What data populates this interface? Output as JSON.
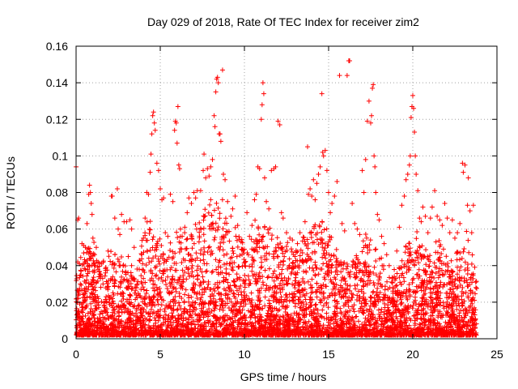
{
  "chart_data": {
    "type": "scatter",
    "title": "Day 029 of 2018, Rate Of TEC Index for receiver zim2",
    "xlabel": "GPS time / hours",
    "ylabel": "ROTI / TECUs",
    "xlim": [
      0,
      25
    ],
    "ylim": [
      0,
      0.16
    ],
    "x_ticks": [
      0,
      5,
      10,
      15,
      20,
      25
    ],
    "x_tick_labels": [
      "0",
      "5",
      "10",
      "15",
      "20",
      "25"
    ],
    "y_ticks": [
      0,
      0.02,
      0.04,
      0.06,
      0.08,
      0.1,
      0.12,
      0.14,
      0.16
    ],
    "y_tick_labels": [
      "0",
      "0.02",
      "0.04",
      "0.06",
      "0.08",
      "0.1",
      "0.12",
      "0.14",
      "0.16"
    ],
    "grid": true,
    "marker": "+",
    "series_color": "#ff0000",
    "points": [
      [
        0.0,
        0.094
      ],
      [
        0.05,
        0.013
      ],
      [
        0.1,
        0.065
      ],
      [
        0.15,
        0.066
      ],
      [
        0.1,
        0.042
      ],
      [
        0.2,
        0.041
      ],
      [
        0.25,
        0.03
      ],
      [
        0.3,
        0.037
      ],
      [
        0.35,
        0.052
      ],
      [
        0.45,
        0.051
      ],
      [
        0.55,
        0.05
      ],
      [
        0.65,
        0.063
      ],
      [
        0.75,
        0.079
      ],
      [
        0.8,
        0.084
      ],
      [
        0.85,
        0.08
      ],
      [
        0.9,
        0.074
      ],
      [
        0.95,
        0.068
      ],
      [
        1.0,
        0.055
      ],
      [
        1.1,
        0.046
      ],
      [
        1.2,
        0.05
      ],
      [
        1.3,
        0.038
      ],
      [
        1.45,
        0.033
      ],
      [
        1.6,
        0.03
      ],
      [
        1.75,
        0.036
      ],
      [
        1.9,
        0.048
      ],
      [
        2.1,
        0.078
      ],
      [
        2.15,
        0.078
      ],
      [
        2.3,
        0.066
      ],
      [
        2.45,
        0.082
      ],
      [
        2.5,
        0.06
      ],
      [
        2.6,
        0.057
      ],
      [
        2.7,
        0.068
      ],
      [
        2.85,
        0.064
      ],
      [
        3.0,
        0.064
      ],
      [
        3.1,
        0.045
      ],
      [
        3.2,
        0.065
      ],
      [
        3.3,
        0.06
      ],
      [
        3.45,
        0.05
      ],
      [
        3.6,
        0.028
      ],
      [
        3.75,
        0.038
      ],
      [
        3.9,
        0.046
      ],
      [
        4.0,
        0.055
      ],
      [
        4.1,
        0.066
      ],
      [
        4.2,
        0.08
      ],
      [
        4.3,
        0.079
      ],
      [
        4.4,
        0.091
      ],
      [
        4.45,
        0.101
      ],
      [
        4.5,
        0.112
      ],
      [
        4.55,
        0.122
      ],
      [
        4.6,
        0.124
      ],
      [
        4.65,
        0.118
      ],
      [
        4.7,
        0.114
      ],
      [
        4.8,
        0.096
      ],
      [
        4.9,
        0.092
      ],
      [
        5.0,
        0.082
      ],
      [
        5.1,
        0.076
      ],
      [
        5.2,
        0.077
      ],
      [
        5.3,
        0.058
      ],
      [
        5.45,
        0.056
      ],
      [
        5.6,
        0.079
      ],
      [
        5.75,
        0.075
      ],
      [
        5.85,
        0.114
      ],
      [
        5.9,
        0.119
      ],
      [
        5.95,
        0.118
      ],
      [
        6.0,
        0.107
      ],
      [
        6.05,
        0.127
      ],
      [
        6.1,
        0.095
      ],
      [
        6.15,
        0.093
      ],
      [
        6.2,
        0.06
      ],
      [
        6.3,
        0.056
      ],
      [
        6.45,
        0.058
      ],
      [
        6.6,
        0.069
      ],
      [
        6.7,
        0.077
      ],
      [
        6.85,
        0.074
      ],
      [
        7.0,
        0.08
      ],
      [
        7.1,
        0.077
      ],
      [
        7.2,
        0.081
      ],
      [
        7.4,
        0.081
      ],
      [
        7.55,
        0.092
      ],
      [
        7.6,
        0.101
      ],
      [
        7.7,
        0.088
      ],
      [
        7.8,
        0.093
      ],
      [
        7.9,
        0.089
      ],
      [
        8.0,
        0.094
      ],
      [
        8.1,
        0.098
      ],
      [
        8.2,
        0.122
      ],
      [
        8.25,
        0.116
      ],
      [
        8.3,
        0.135
      ],
      [
        8.35,
        0.142
      ],
      [
        8.4,
        0.143
      ],
      [
        8.45,
        0.14
      ],
      [
        8.5,
        0.112
      ],
      [
        8.55,
        0.112
      ],
      [
        8.6,
        0.108
      ],
      [
        8.7,
        0.147
      ],
      [
        8.75,
        0.09
      ],
      [
        8.85,
        0.087
      ],
      [
        9.0,
        0.075
      ],
      [
        9.2,
        0.067
      ],
      [
        9.3,
        0.071
      ],
      [
        9.45,
        0.078
      ],
      [
        9.6,
        0.062
      ],
      [
        9.8,
        0.053
      ],
      [
        9.9,
        0.049
      ],
      [
        10.0,
        0.049
      ],
      [
        10.15,
        0.069
      ],
      [
        10.3,
        0.056
      ],
      [
        10.45,
        0.062
      ],
      [
        10.6,
        0.076
      ],
      [
        10.7,
        0.079
      ],
      [
        10.8,
        0.094
      ],
      [
        10.9,
        0.093
      ],
      [
        11.0,
        0.12
      ],
      [
        11.05,
        0.128
      ],
      [
        11.1,
        0.14
      ],
      [
        11.15,
        0.134
      ],
      [
        11.2,
        0.088
      ],
      [
        11.3,
        0.075
      ],
      [
        11.45,
        0.071
      ],
      [
        11.6,
        0.092
      ],
      [
        11.75,
        0.093
      ],
      [
        11.85,
        0.094
      ],
      [
        12.0,
        0.119
      ],
      [
        12.1,
        0.117
      ],
      [
        12.2,
        0.069
      ],
      [
        12.3,
        0.066
      ],
      [
        12.5,
        0.058
      ],
      [
        12.7,
        0.055
      ],
      [
        12.85,
        0.054
      ],
      [
        13.0,
        0.045
      ],
      [
        13.15,
        0.052
      ],
      [
        13.3,
        0.058
      ],
      [
        13.45,
        0.047
      ],
      [
        13.6,
        0.064
      ],
      [
        13.75,
        0.105
      ],
      [
        13.8,
        0.079
      ],
      [
        13.9,
        0.082
      ],
      [
        14.0,
        0.078
      ],
      [
        14.1,
        0.087
      ],
      [
        14.2,
        0.076
      ],
      [
        14.3,
        0.085
      ],
      [
        14.4,
        0.09
      ],
      [
        14.5,
        0.094
      ],
      [
        14.6,
        0.134
      ],
      [
        14.65,
        0.102
      ],
      [
        14.7,
        0.1
      ],
      [
        14.8,
        0.103
      ],
      [
        14.9,
        0.092
      ],
      [
        15.0,
        0.08
      ],
      [
        15.1,
        0.069
      ],
      [
        15.2,
        0.074
      ],
      [
        15.35,
        0.078
      ],
      [
        15.5,
        0.086
      ],
      [
        15.65,
        0.144
      ],
      [
        15.8,
        0.063
      ],
      [
        15.95,
        0.059
      ],
      [
        16.1,
        0.144
      ],
      [
        16.2,
        0.152
      ],
      [
        16.25,
        0.152
      ],
      [
        16.4,
        0.074
      ],
      [
        16.55,
        0.063
      ],
      [
        16.7,
        0.06
      ],
      [
        16.85,
        0.057
      ],
      [
        17.0,
        0.092
      ],
      [
        17.1,
        0.08
      ],
      [
        17.2,
        0.098
      ],
      [
        17.3,
        0.119
      ],
      [
        17.4,
        0.13
      ],
      [
        17.5,
        0.118
      ],
      [
        17.55,
        0.122
      ],
      [
        17.6,
        0.137
      ],
      [
        17.65,
        0.139
      ],
      [
        17.7,
        0.1
      ],
      [
        17.75,
        0.094
      ],
      [
        17.8,
        0.08
      ],
      [
        17.9,
        0.068
      ],
      [
        18.0,
        0.065
      ],
      [
        18.15,
        0.056
      ],
      [
        18.3,
        0.052
      ],
      [
        18.45,
        0.046
      ],
      [
        18.6,
        0.04
      ],
      [
        18.75,
        0.031
      ],
      [
        18.9,
        0.034
      ],
      [
        19.05,
        0.048
      ],
      [
        19.2,
        0.061
      ],
      [
        19.35,
        0.073
      ],
      [
        19.5,
        0.078
      ],
      [
        19.6,
        0.087
      ],
      [
        19.7,
        0.09
      ],
      [
        19.8,
        0.095
      ],
      [
        19.85,
        0.1
      ],
      [
        19.9,
        0.121
      ],
      [
        19.95,
        0.127
      ],
      [
        20.0,
        0.133
      ],
      [
        20.05,
        0.126
      ],
      [
        20.1,
        0.113
      ],
      [
        20.15,
        0.1
      ],
      [
        20.2,
        0.09
      ],
      [
        20.3,
        0.081
      ],
      [
        20.4,
        0.066
      ],
      [
        20.5,
        0.064
      ],
      [
        20.6,
        0.072
      ],
      [
        20.75,
        0.067
      ],
      [
        20.9,
        0.058
      ],
      [
        21.05,
        0.066
      ],
      [
        21.15,
        0.072
      ],
      [
        21.3,
        0.081
      ],
      [
        21.45,
        0.067
      ],
      [
        21.6,
        0.065
      ],
      [
        21.75,
        0.062
      ],
      [
        21.9,
        0.074
      ],
      [
        22.05,
        0.066
      ],
      [
        22.2,
        0.058
      ],
      [
        22.35,
        0.065
      ],
      [
        22.5,
        0.055
      ],
      [
        22.65,
        0.058
      ],
      [
        22.8,
        0.063
      ],
      [
        22.95,
        0.096
      ],
      [
        23.0,
        0.091
      ],
      [
        23.1,
        0.095
      ],
      [
        23.25,
        0.073
      ],
      [
        23.3,
        0.088
      ],
      [
        23.4,
        0.07
      ],
      [
        23.5,
        0.058
      ],
      [
        23.6,
        0.073
      ],
      [
        23.75,
        0.028
      ]
    ]
  }
}
